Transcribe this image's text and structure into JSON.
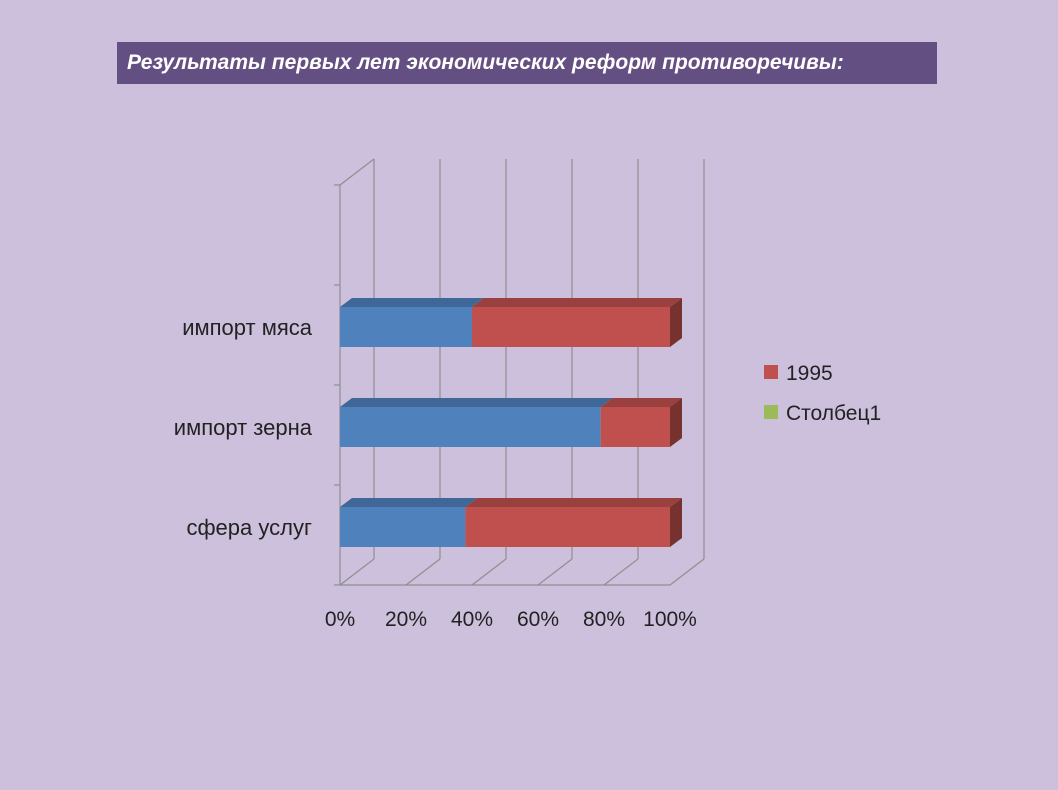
{
  "slide": {
    "title": "Результаты первых лет экономических реформ противоречивы:"
  },
  "chart_data": {
    "type": "bar",
    "orientation": "horizontal",
    "stacking": "percent",
    "three_d": true,
    "categories": [
      "импорт мяса",
      "импорт зерна",
      "сфера услуг"
    ],
    "series": [
      {
        "values": [
          40,
          79,
          38
        ],
        "color": "#4f81bd"
      },
      {
        "name": "1995",
        "values": [
          60,
          21,
          62
        ],
        "color": "#c0504d"
      },
      {
        "name": "Столбец1",
        "values": [
          0,
          0,
          0
        ],
        "color": "#9bbb59"
      }
    ],
    "x_ticks": [
      "0%",
      "20%",
      "40%",
      "60%",
      "80%",
      "100%"
    ],
    "xlim": [
      0,
      100
    ],
    "grid": true,
    "legend": {
      "position": "right",
      "entries": [
        "1995",
        "Столбец1"
      ]
    }
  }
}
